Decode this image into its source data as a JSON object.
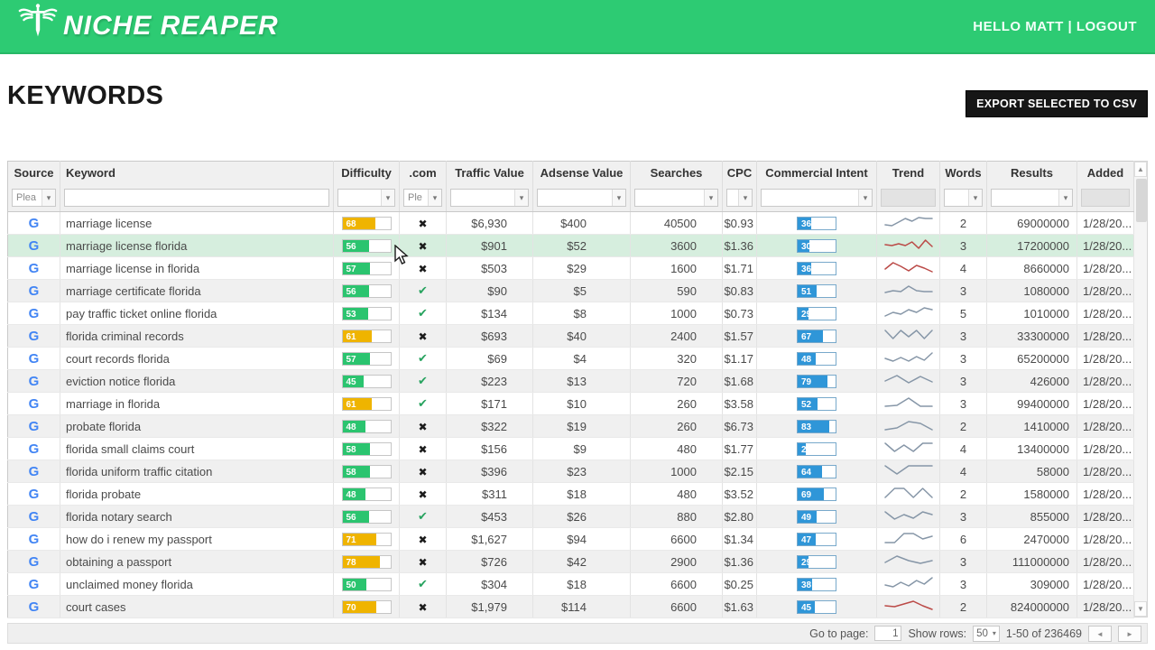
{
  "header": {
    "logo": "NICHE REAPER",
    "greeting": "HELLO MATT",
    "separator": " | ",
    "logout": "LOGOUT"
  },
  "page": {
    "title": "KEYWORDS",
    "export_button": "EXPORT SELECTED TO CSV"
  },
  "icons": {
    "dropdown_arrow": "▾",
    "check": "✔",
    "cross": "✖",
    "scroll_up": "▲",
    "scroll_down": "▼",
    "prev_page": "◄",
    "next_page": "►",
    "source_google": "G"
  },
  "colors": {
    "header_green": "#2dcb73",
    "difficulty_green": "#2bc46f",
    "difficulty_orange": "#efb400",
    "intent_blue": "#2f96d8",
    "trend_gray": "#8696a7",
    "trend_red": "#bb4a47",
    "selected_row": "#d6eede",
    "g_blue": "#4285f4"
  },
  "table": {
    "columns": [
      "Source",
      "Keyword",
      "Difficulty",
      ".com",
      "Traffic Value",
      "Adsense Value",
      "Searches",
      "CPC",
      "Commercial Intent",
      "Trend",
      "Words",
      "Results",
      "Added"
    ],
    "filters": [
      {
        "type": "select",
        "value": "Plea"
      },
      {
        "type": "input",
        "value": ""
      },
      {
        "type": "select",
        "value": ""
      },
      {
        "type": "select",
        "value": "Ple"
      },
      {
        "type": "select",
        "value": ""
      },
      {
        "type": "select",
        "value": ""
      },
      {
        "type": "select",
        "value": ""
      },
      {
        "type": "select",
        "value": ""
      },
      {
        "type": "select",
        "value": ""
      },
      {
        "type": "disabled",
        "value": ""
      },
      {
        "type": "select",
        "value": ""
      },
      {
        "type": "select",
        "value": ""
      },
      {
        "type": "disabled",
        "value": ""
      }
    ],
    "rows": [
      {
        "source": "G",
        "keyword": "marriage license",
        "difficulty": 68,
        "difficulty_color": "orange",
        "com": false,
        "traffic_value": "$6,930",
        "adsense_value": "$400",
        "searches": "40500",
        "cpc": "$0.93",
        "intent": 36,
        "trend": {
          "color": "gray",
          "points": [
            12,
            13,
            9,
            5,
            8,
            4,
            5,
            5
          ]
        },
        "words": "2",
        "results": "69000000",
        "added": "1/28/20...",
        "selected": false
      },
      {
        "source": "G",
        "keyword": "marriage license florida",
        "difficulty": 56,
        "difficulty_color": "green",
        "com": false,
        "traffic_value": "$901",
        "adsense_value": "$52",
        "searches": "3600",
        "cpc": "$1.36",
        "intent": 30,
        "trend": {
          "color": "red",
          "points": [
            9,
            10,
            8,
            10,
            6,
            13,
            4,
            11
          ]
        },
        "words": "3",
        "results": "17200000",
        "added": "1/28/20...",
        "selected": true
      },
      {
        "source": "G",
        "keyword": "marriage license in florida",
        "difficulty": 57,
        "difficulty_color": "green",
        "com": false,
        "traffic_value": "$503",
        "adsense_value": "$29",
        "searches": "1600",
        "cpc": "$1.71",
        "intent": 36,
        "trend": {
          "color": "red",
          "points": [
            11,
            4,
            8,
            13,
            7,
            10,
            14
          ]
        },
        "words": "4",
        "results": "8660000",
        "added": "1/28/20...",
        "selected": false
      },
      {
        "source": "G",
        "keyword": "marriage certificate florida",
        "difficulty": 56,
        "difficulty_color": "green",
        "com": true,
        "traffic_value": "$90",
        "adsense_value": "$5",
        "searches": "590",
        "cpc": "$0.83",
        "intent": 51,
        "trend": {
          "color": "gray",
          "points": [
            12,
            10,
            11,
            5,
            10,
            11,
            11
          ]
        },
        "words": "3",
        "results": "1080000",
        "added": "1/28/20...",
        "selected": false
      },
      {
        "source": "G",
        "keyword": "pay traffic ticket online florida",
        "difficulty": 53,
        "difficulty_color": "green",
        "com": true,
        "traffic_value": "$134",
        "adsense_value": "$8",
        "searches": "1000",
        "cpc": "$0.73",
        "intent": 29,
        "trend": {
          "color": "gray",
          "points": [
            13,
            9,
            11,
            6,
            9,
            4,
            6
          ]
        },
        "words": "5",
        "results": "1010000",
        "added": "1/28/20...",
        "selected": false
      },
      {
        "source": "G",
        "keyword": "florida criminal records",
        "difficulty": 61,
        "difficulty_color": "orange",
        "com": false,
        "traffic_value": "$693",
        "adsense_value": "$40",
        "searches": "2400",
        "cpc": "$1.57",
        "intent": 67,
        "trend": {
          "color": "gray",
          "points": [
            4,
            13,
            4,
            11,
            4,
            13,
            4
          ]
        },
        "words": "3",
        "results": "33300000",
        "added": "1/28/20...",
        "selected": false
      },
      {
        "source": "G",
        "keyword": "court records florida",
        "difficulty": 57,
        "difficulty_color": "green",
        "com": true,
        "traffic_value": "$69",
        "adsense_value": "$4",
        "searches": "320",
        "cpc": "$1.17",
        "intent": 48,
        "trend": {
          "color": "gray",
          "points": [
            10,
            13,
            9,
            13,
            8,
            12,
            4
          ]
        },
        "words": "3",
        "results": "65200000",
        "added": "1/28/20...",
        "selected": false
      },
      {
        "source": "G",
        "keyword": "eviction notice florida",
        "difficulty": 45,
        "difficulty_color": "green",
        "com": true,
        "traffic_value": "$223",
        "adsense_value": "$13",
        "searches": "720",
        "cpc": "$1.68",
        "intent": 79,
        "trend": {
          "color": "gray",
          "points": [
            10,
            4,
            12,
            5,
            11
          ]
        },
        "words": "3",
        "results": "426000",
        "added": "1/28/20...",
        "selected": false
      },
      {
        "source": "G",
        "keyword": "marriage in florida",
        "difficulty": 61,
        "difficulty_color": "orange",
        "com": true,
        "traffic_value": "$171",
        "adsense_value": "$10",
        "searches": "260",
        "cpc": "$3.58",
        "intent": 52,
        "trend": {
          "color": "gray",
          "points": [
            13,
            12,
            4,
            13,
            13
          ]
        },
        "words": "3",
        "results": "99400000",
        "added": "1/28/20...",
        "selected": false
      },
      {
        "source": "G",
        "keyword": "probate florida",
        "difficulty": 48,
        "difficulty_color": "green",
        "com": false,
        "traffic_value": "$322",
        "adsense_value": "$19",
        "searches": "260",
        "cpc": "$6.73",
        "intent": 83,
        "trend": {
          "color": "gray",
          "points": [
            14,
            12,
            5,
            7,
            14
          ]
        },
        "words": "2",
        "results": "1410000",
        "added": "1/28/20...",
        "selected": false
      },
      {
        "source": "G",
        "keyword": "florida small claims court",
        "difficulty": 58,
        "difficulty_color": "green",
        "com": false,
        "traffic_value": "$156",
        "adsense_value": "$9",
        "searches": "480",
        "cpc": "$1.77",
        "intent": 22,
        "trend": {
          "color": "gray",
          "points": [
            4,
            13,
            6,
            13,
            4,
            4
          ]
        },
        "words": "4",
        "results": "13400000",
        "added": "1/28/20...",
        "selected": false
      },
      {
        "source": "G",
        "keyword": "florida uniform traffic citation",
        "difficulty": 58,
        "difficulty_color": "green",
        "com": false,
        "traffic_value": "$396",
        "adsense_value": "$23",
        "searches": "1000",
        "cpc": "$2.15",
        "intent": 64,
        "trend": {
          "color": "gray",
          "points": [
            4,
            13,
            4,
            4,
            4
          ]
        },
        "words": "4",
        "results": "58000",
        "added": "1/28/20...",
        "selected": false
      },
      {
        "source": "G",
        "keyword": "florida probate",
        "difficulty": 48,
        "difficulty_color": "green",
        "com": false,
        "traffic_value": "$311",
        "adsense_value": "$18",
        "searches": "480",
        "cpc": "$3.52",
        "intent": 69,
        "trend": {
          "color": "gray",
          "points": [
            14,
            4,
            4,
            14,
            4,
            14
          ]
        },
        "words": "2",
        "results": "1580000",
        "added": "1/28/20...",
        "selected": false
      },
      {
        "source": "G",
        "keyword": "florida notary search",
        "difficulty": 56,
        "difficulty_color": "green",
        "com": true,
        "traffic_value": "$453",
        "adsense_value": "$26",
        "searches": "880",
        "cpc": "$2.80",
        "intent": 49,
        "trend": {
          "color": "gray",
          "points": [
            5,
            13,
            8,
            12,
            5,
            8
          ]
        },
        "words": "3",
        "results": "855000",
        "added": "1/28/20...",
        "selected": false
      },
      {
        "source": "G",
        "keyword": "how do i renew my passport",
        "difficulty": 71,
        "difficulty_color": "orange",
        "com": false,
        "traffic_value": "$1,627",
        "adsense_value": "$94",
        "searches": "6600",
        "cpc": "$1.34",
        "intent": 47,
        "trend": {
          "color": "gray",
          "points": [
            14,
            14,
            4,
            4,
            10,
            7
          ]
        },
        "words": "6",
        "results": "2470000",
        "added": "1/28/20...",
        "selected": false
      },
      {
        "source": "G",
        "keyword": "obtaining a passport",
        "difficulty": 78,
        "difficulty_color": "orange",
        "com": false,
        "traffic_value": "$726",
        "adsense_value": "$42",
        "searches": "2900",
        "cpc": "$1.36",
        "intent": 29,
        "trend": {
          "color": "gray",
          "points": [
            11,
            4,
            9,
            12,
            9
          ]
        },
        "words": "3",
        "results": "111000000",
        "added": "1/28/20...",
        "selected": false
      },
      {
        "source": "G",
        "keyword": "unclaimed money florida",
        "difficulty": 50,
        "difficulty_color": "green",
        "com": true,
        "traffic_value": "$304",
        "adsense_value": "$18",
        "searches": "6600",
        "cpc": "$0.25",
        "intent": 38,
        "trend": {
          "color": "gray",
          "points": [
            11,
            13,
            8,
            12,
            6,
            10,
            3
          ]
        },
        "words": "3",
        "results": "309000",
        "added": "1/28/20...",
        "selected": false
      },
      {
        "source": "G",
        "keyword": "court cases",
        "difficulty": 70,
        "difficulty_color": "orange",
        "com": false,
        "traffic_value": "$1,979",
        "adsense_value": "$114",
        "searches": "6600",
        "cpc": "$1.63",
        "intent": 45,
        "trend": {
          "color": "red",
          "points": [
            9,
            10,
            7,
            4,
            9,
            13
          ]
        },
        "words": "2",
        "results": "824000000",
        "added": "1/28/20...",
        "selected": false
      }
    ]
  },
  "footer": {
    "go_to_page_label": "Go to page:",
    "page_value": "1",
    "show_rows_label": "Show rows:",
    "rows_value": "50",
    "range_text": "1-50 of 236469"
  }
}
